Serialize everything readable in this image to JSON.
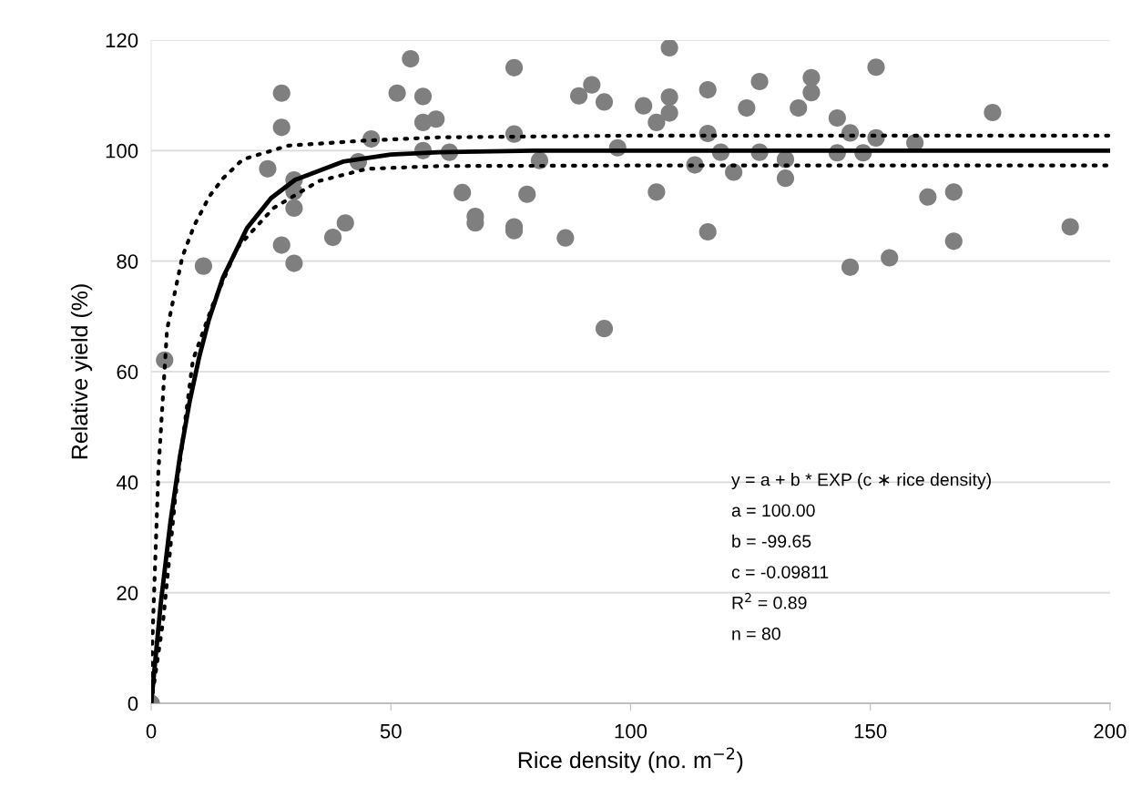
{
  "chart_data": {
    "type": "scatter",
    "xlabel": "Rice density (no. m$^{−2}$)",
    "ylabel": "Relative yield (%)",
    "xlim": [
      0,
      200
    ],
    "xticks": [
      0,
      50,
      100,
      150,
      200
    ],
    "ylim": [
      0,
      120
    ],
    "yticks": [
      0,
      20,
      40,
      60,
      80,
      100,
      120
    ],
    "grid": "y",
    "marker": "circle",
    "series": [
      {
        "color": "#7f7f7f",
        "x": [
          0,
          2.8,
          10.9,
          24.3,
          27.2,
          27.2,
          27.2,
          29.8,
          29.8,
          29.8,
          29.8,
          37.9,
          40.5,
          43.2,
          45.9,
          51.3,
          54.1,
          56.7,
          56.7,
          56.7,
          59.4,
          62.2,
          64.9,
          67.6,
          67.6,
          75.7,
          75.7,
          75.7,
          75.7,
          78.4,
          81.0,
          86.4,
          89.2,
          91.9,
          94.5,
          94.5,
          97.3,
          102.7,
          105.4,
          105.4,
          108.1,
          108.1,
          108.1,
          113.4,
          116.1,
          116.1,
          116.1,
          118.8,
          121.5,
          124.2,
          126.9,
          126.9,
          132.3,
          132.3,
          135.0,
          137.7,
          137.7,
          143.1,
          143.1,
          145.8,
          145.8,
          148.5,
          151.2,
          151.2,
          154.0,
          159.3,
          162.0,
          167.4,
          167.4,
          175.5,
          191.7
        ],
        "values": [
          0,
          62.1,
          79.1,
          96.7,
          110.4,
          104.2,
          82.9,
          94.7,
          92.6,
          89.6,
          79.6,
          84.3,
          86.9,
          98.0,
          102.1,
          110.4,
          116.6,
          109.8,
          105.1,
          100.0,
          105.7,
          99.7,
          92.4,
          88.1,
          86.9,
          115.0,
          103.0,
          86.2,
          85.5,
          92.1,
          98.2,
          84.2,
          109.9,
          111.9,
          108.8,
          67.8,
          100.5,
          108.1,
          105.1,
          92.5,
          118.6,
          109.7,
          106.8,
          97.4,
          111.0,
          103.1,
          85.3,
          99.7,
          96.1,
          107.7,
          112.5,
          99.7,
          98.4,
          95.0,
          107.7,
          113.2,
          110.5,
          105.9,
          99.6,
          103.2,
          78.9,
          99.6,
          115.1,
          102.3,
          80.6,
          101.4,
          91.6,
          92.5,
          83.6,
          106.9,
          86.2
        ]
      },
      {
        "type": "line",
        "color": "#000000",
        "line_style": "solid",
        "marker": "none",
        "x": [
          0,
          2,
          4,
          6,
          8,
          10,
          12,
          15,
          20,
          25,
          30,
          40,
          50,
          60,
          80,
          100,
          150,
          200
        ],
        "values": [
          0,
          18.1,
          32.7,
          44.7,
          54.5,
          62.6,
          69.3,
          77.1,
          86.0,
          91.4,
          94.7,
          98.0,
          99.3,
          99.7,
          100.0,
          100.0,
          100.0,
          100.0
        ]
      },
      {
        "type": "line",
        "color": "#000000",
        "line_style": "dotted",
        "marker": "none",
        "x": [
          0,
          1.5,
          3.3,
          6.5,
          9,
          12.2,
          15,
          19.1,
          28.6,
          44.4,
          60,
          100,
          200
        ],
        "values": [
          5,
          42,
          67.6,
          80.8,
          86.5,
          91.8,
          95,
          98.4,
          100.9,
          101.8,
          102.4,
          102.7,
          102.7
        ]
      },
      {
        "type": "line",
        "color": "#000000",
        "line_style": "dotted",
        "marker": "none",
        "x": [
          0,
          2.5,
          5,
          8.7,
          12.8,
          17.9,
          25.5,
          35,
          45,
          60,
          100,
          200
        ],
        "values": [
          0,
          15,
          37,
          62.1,
          72,
          82.4,
          89.6,
          94.5,
          96.7,
          97.2,
          97.3,
          97.3
        ]
      }
    ],
    "annotations": [
      "y = a + b * EXP (c ∗ rice density)",
      "a = 100.00",
      "b = -99.65",
      "c = -0.09811",
      "R$^{2}$ = 0.89",
      "n = 80"
    ]
  }
}
